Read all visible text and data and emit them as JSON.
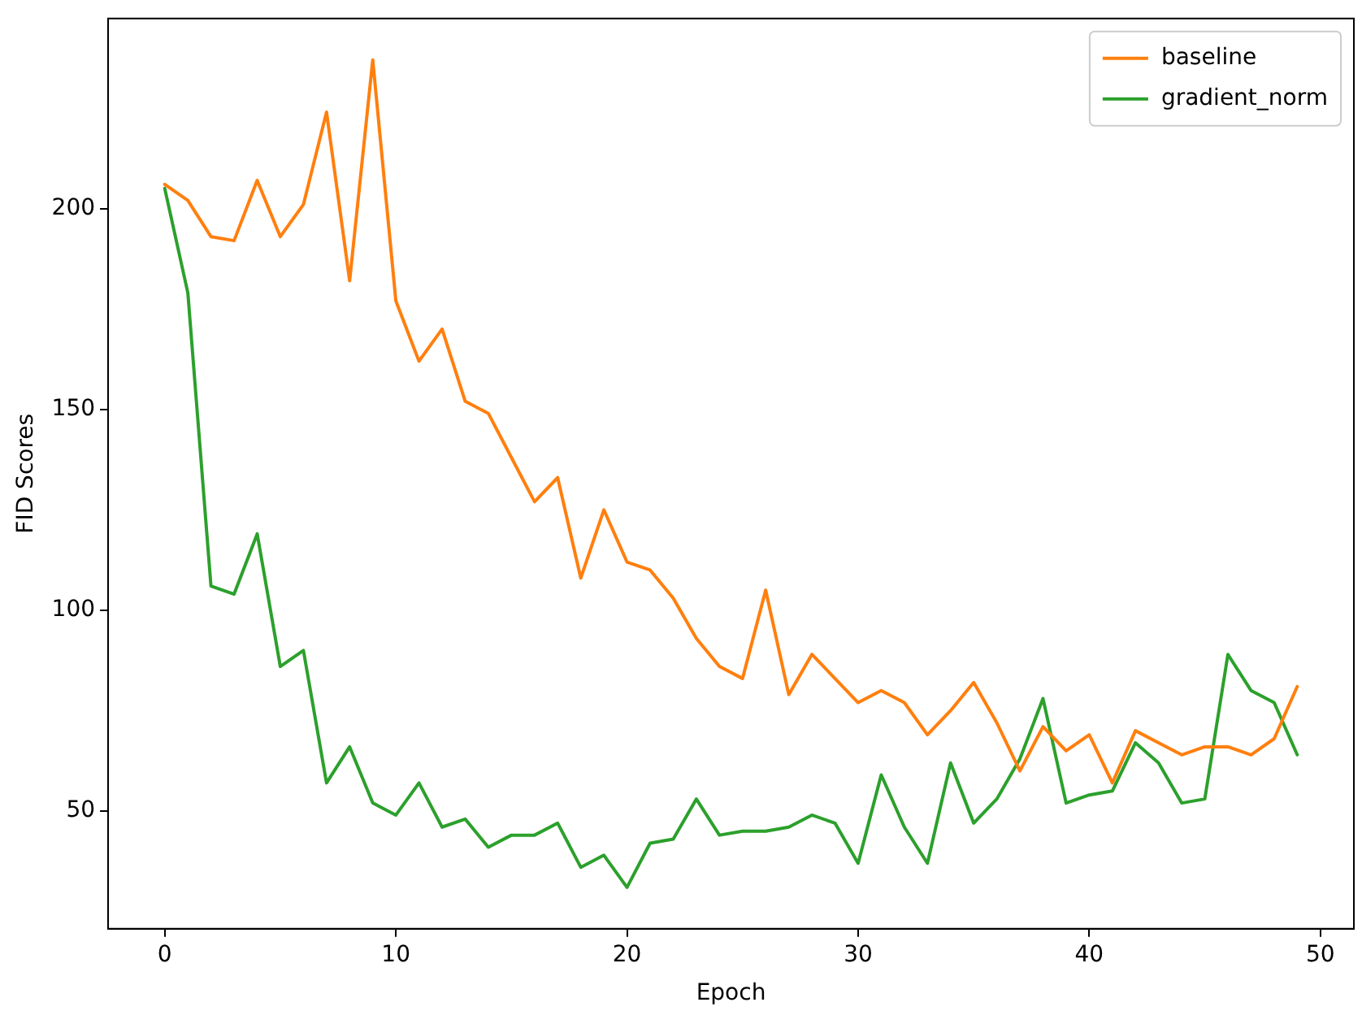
{
  "chart_data": {
    "type": "line",
    "xlabel": "Epoch",
    "ylabel": "FID Scores",
    "x": [
      0,
      1,
      2,
      3,
      4,
      5,
      6,
      7,
      8,
      9,
      10,
      11,
      12,
      13,
      14,
      15,
      16,
      17,
      18,
      19,
      20,
      21,
      22,
      23,
      24,
      25,
      26,
      27,
      28,
      29,
      30,
      31,
      32,
      33,
      34,
      35,
      36,
      37,
      38,
      39,
      40,
      41,
      42,
      43,
      44,
      45,
      46,
      47,
      48,
      49
    ],
    "series": [
      {
        "name": "baseline",
        "color": "#ff7f0e",
        "values": [
          206,
          202,
          193,
          192,
          207,
          193,
          201,
          224,
          182,
          237,
          177,
          162,
          170,
          152,
          149,
          138,
          127,
          133,
          108,
          125,
          112,
          110,
          103,
          93,
          86,
          83,
          105,
          79,
          89,
          83,
          77,
          80,
          77,
          69,
          75,
          82,
          72,
          60,
          71,
          65,
          69,
          57,
          70,
          67,
          64,
          66,
          66,
          64,
          68,
          81
        ]
      },
      {
        "name": "gradient_norm",
        "color": "#2ca02c",
        "values": [
          205,
          179,
          106,
          104,
          119,
          86,
          90,
          57,
          66,
          52,
          49,
          57,
          46,
          48,
          41,
          44,
          44,
          47,
          36,
          39,
          31,
          42,
          43,
          53,
          44,
          45,
          45,
          46,
          49,
          47,
          37,
          59,
          46,
          37,
          62,
          47,
          53,
          63,
          78,
          52,
          54,
          55,
          67,
          62,
          52,
          53,
          89,
          80,
          77,
          64
        ]
      }
    ],
    "xlim": [
      -2.45,
      51.45
    ],
    "ylim": [
      20.7,
      247.3
    ],
    "xticks": [
      0,
      10,
      20,
      30,
      40,
      50
    ],
    "yticks": [
      50,
      100,
      150,
      200
    ],
    "grid": false,
    "legend": "top right",
    "marker": "none",
    "line_style": "solid"
  }
}
